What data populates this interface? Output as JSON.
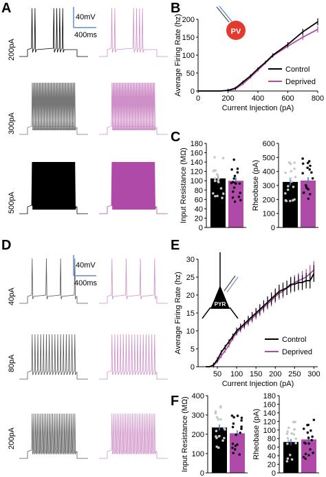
{
  "panel_labels": [
    "A",
    "B",
    "C",
    "D",
    "E",
    "F"
  ],
  "colors": {
    "control": "#000000",
    "deprived": "#b04aa8",
    "deprived_light": "#cf8fc8",
    "scale": "#5b8fd0",
    "pv_cell": "#e23a2f",
    "accent": "#3a78c9"
  },
  "panelA": {
    "currents": [
      "200pA",
      "300pA",
      "500pA"
    ],
    "scale_v": "40mV",
    "scale_t": "400ms"
  },
  "panelD": {
    "currents": [
      "40pA",
      "80pA",
      "200pA"
    ],
    "scale_v": "40mV",
    "scale_t": "400ms"
  },
  "icons": {
    "pv_label": "PV",
    "pyr_label": "PYR"
  },
  "legend": {
    "control": "Control",
    "deprived": "Deprived"
  },
  "chart_data": [
    {
      "id": "B",
      "type": "line",
      "xlabel": "Current Injection (pA)",
      "ylabel": "Average Firing Rate (hz)",
      "xlim": [
        0,
        800
      ],
      "ylim": [
        0,
        200
      ],
      "xticks": [
        "0",
        "200",
        "400",
        "600",
        "800"
      ],
      "yticks": [
        "0",
        "50",
        "100",
        "150",
        "200"
      ],
      "x": [
        0,
        50,
        100,
        150,
        200,
        250,
        300,
        350,
        400,
        450,
        500,
        600,
        700,
        800
      ],
      "series": [
        {
          "name": "Control",
          "values": [
            0,
            0,
            0,
            0,
            2,
            8,
            25,
            42,
            62,
            80,
            100,
            130,
            165,
            193
          ]
        },
        {
          "name": "Deprived",
          "values": [
            0,
            0,
            0,
            0,
            1,
            6,
            20,
            38,
            58,
            78,
            98,
            125,
            150,
            172
          ]
        }
      ],
      "legend_position": "bottom-right"
    },
    {
      "id": "C1",
      "type": "bar",
      "ylabel": "Input Resistance (MΩ)",
      "ylim": [
        0,
        180
      ],
      "yticks": [
        "0",
        "20",
        "40",
        "60",
        "80",
        "100",
        "120",
        "140",
        "160",
        "180"
      ],
      "categories": [
        "Control",
        "Deprived"
      ],
      "values": [
        105,
        100
      ]
    },
    {
      "id": "C2",
      "type": "bar",
      "ylabel": "Rheobase (pA)",
      "ylim": [
        0,
        600
      ],
      "yticks": [
        "0",
        "100",
        "200",
        "300",
        "400",
        "500",
        "600"
      ],
      "categories": [
        "Control",
        "Deprived"
      ],
      "values": [
        325,
        335
      ]
    },
    {
      "id": "E",
      "type": "line",
      "xlabel": "Current Injection (pA)",
      "ylabel": "Average Firing Rate (hz)",
      "xlim": [
        0,
        310
      ],
      "ylim": [
        0,
        30
      ],
      "xticks": [
        "50",
        "100",
        "150",
        "200",
        "250",
        "300"
      ],
      "yticks": [
        "0",
        "5",
        "10",
        "15",
        "20",
        "25",
        "30"
      ],
      "x": [
        20,
        30,
        40,
        50,
        60,
        70,
        80,
        90,
        100,
        110,
        120,
        130,
        140,
        150,
        160,
        170,
        180,
        190,
        200,
        210,
        220,
        230,
        240,
        250,
        260,
        270,
        280,
        290,
        300
      ],
      "series": [
        {
          "name": "Control",
          "values": [
            0,
            0,
            0.5,
            2,
            4,
            5.5,
            7,
            8.5,
            10,
            11,
            12,
            13,
            14,
            15,
            16,
            17,
            18,
            19,
            20,
            21,
            21.5,
            22,
            23,
            23,
            23.5,
            23.5,
            24,
            24,
            26
          ]
        },
        {
          "name": "Deprived",
          "values": [
            0,
            0,
            0.3,
            1.5,
            3,
            4.5,
            6,
            8,
            9.5,
            10.5,
            11.5,
            12.5,
            13.5,
            14.5,
            15.5,
            16.5,
            17.5,
            18.5,
            19.5,
            20.5,
            21,
            22,
            22.5,
            23.5,
            24,
            24.5,
            25,
            26,
            27
          ]
        }
      ],
      "legend_position": "bottom-right"
    },
    {
      "id": "F1",
      "type": "bar",
      "ylabel": "Input Resistance (MΩ)",
      "ylim": [
        0,
        400
      ],
      "yticks": [
        "0",
        "100",
        "200",
        "300",
        "400"
      ],
      "categories": [
        "Control",
        "Deprived"
      ],
      "values": [
        235,
        205
      ]
    },
    {
      "id": "F2",
      "type": "bar",
      "ylabel": "Rheobase (pA)",
      "ylim": [
        0,
        180
      ],
      "yticks": [
        "0",
        "20",
        "40",
        "60",
        "80",
        "100",
        "120",
        "140",
        "160",
        "180"
      ],
      "categories": [
        "Control",
        "Deprived"
      ],
      "values": [
        72,
        78
      ]
    }
  ]
}
